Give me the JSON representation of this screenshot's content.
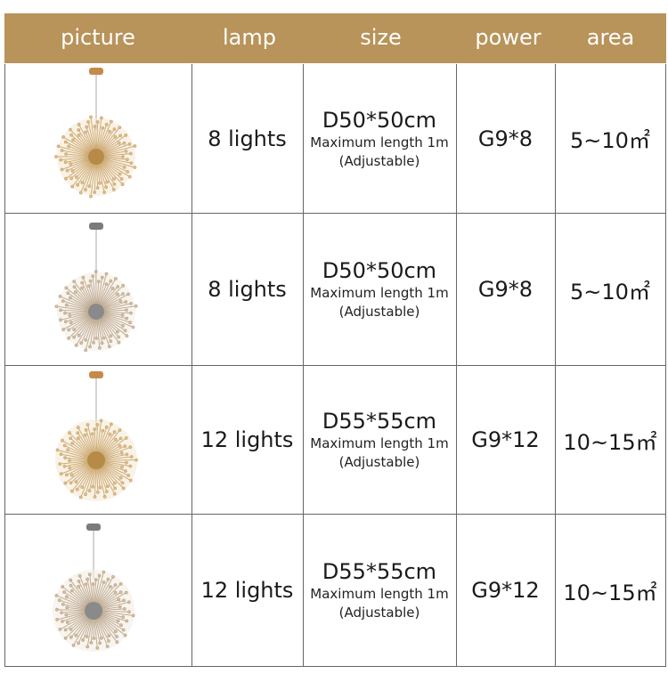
{
  "header": {
    "picture": "picture",
    "lamp": "lamp",
    "size": "size",
    "power": "power",
    "area": "area"
  },
  "rows": [
    {
      "lamp": "8 lights",
      "size_main": "D50*50cm",
      "size_sub1": "Maximum length 1m",
      "size_sub2": "(Adjustable)",
      "power": "G9*8",
      "area": "5~10㎡"
    },
    {
      "lamp": "8 lights",
      "size_main": "D50*50cm",
      "size_sub1": "Maximum length 1m",
      "size_sub2": "(Adjustable)",
      "power": "G9*8",
      "area": "5~10㎡"
    },
    {
      "lamp": "12 lights",
      "size_main": "D55*55cm",
      "size_sub1": "Maximum length 1m",
      "size_sub2": "(Adjustable)",
      "power": "G9*12",
      "area": "10~15㎡"
    },
    {
      "lamp": "12 lights",
      "size_main": "D55*55cm",
      "size_sub1": "Maximum length 1m",
      "size_sub2": "(Adjustable)",
      "power": "G9*12",
      "area": "10~15㎡"
    }
  ],
  "colors": {
    "header_bg": "#b8935a",
    "header_text": "#ffffff",
    "gold_canopy": "#c58a4a",
    "chrome_canopy": "#7b7b7b"
  },
  "icons": [
    "chandelier-gold-icon",
    "chandelier-chrome-icon"
  ]
}
